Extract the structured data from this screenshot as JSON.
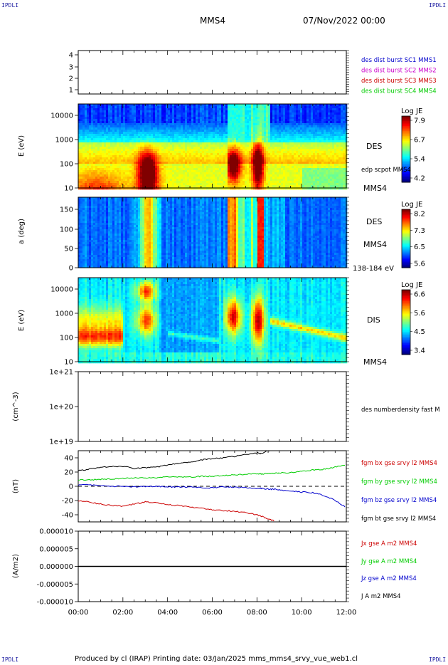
{
  "corner_labels": {
    "tl": "IPDLI",
    "tr": "IPDLI",
    "bl": "IPDLI",
    "br": "IPDLI"
  },
  "header": {
    "spacecraft": "MMS4",
    "date": "07/Nov/2022 00:00"
  },
  "footer": {
    "text": "Produced by cl (IRAP)   Printing date: 03/Jan/2025   mms_mms4_srvy_vue_web1.cl"
  },
  "colors": {
    "red": "#cc0000",
    "green": "#00cc00",
    "blue": "#0000cc",
    "black": "#000000",
    "magenta": "#cc00cc",
    "corner": "#1a1aa0"
  },
  "chart_data": [
    {
      "type": "table",
      "name": "burst-availability",
      "ytick_labels": [
        "4",
        "3",
        "2",
        "1"
      ],
      "legend": [
        {
          "text": "des dist burst SC1 MMS1",
          "color": "#0000cc"
        },
        {
          "text": "des dist burst SC2 MMS2",
          "color": "#cc00cc"
        },
        {
          "text": "des dist burst SC3 MMS3",
          "color": "#cc0000"
        },
        {
          "text": "des dist burst SC4 MMS4",
          "color": "#00cc00"
        }
      ]
    },
    {
      "type": "heatmap",
      "name": "des-energy-spectrogram",
      "ylabel": "E (eV)",
      "ytick_labels": [
        "10000",
        "1000",
        "100",
        "10"
      ],
      "yscale": "log",
      "ylim": [
        10,
        30000
      ],
      "colorbar": {
        "title": "Log JE",
        "tick_labels": [
          "7.9",
          "6.7",
          "5.4",
          "4.2"
        ],
        "range": [
          4.2,
          8.3
        ]
      },
      "side_labels": {
        "instrument": "DES",
        "overlay": "edp scpot MMS4",
        "spacecraft": "MMS4"
      }
    },
    {
      "type": "heatmap",
      "name": "des-pitch-angle",
      "ylabel": "a (deg)",
      "ytick_labels": [
        "150",
        "100",
        "50",
        "0"
      ],
      "ylim": [
        0,
        180
      ],
      "colorbar": {
        "title": "Log JE",
        "tick_labels": [
          "8.2",
          "7.3",
          "6.5",
          "5.6"
        ],
        "range": [
          5.6,
          8.5
        ]
      },
      "side_labels": {
        "instrument": "DES",
        "spacecraft": "MMS4",
        "energy_range": "138-184 eV"
      }
    },
    {
      "type": "heatmap",
      "name": "dis-energy-spectrogram",
      "ylabel": "E (eV)",
      "ytick_labels": [
        "10000",
        "1000",
        "100",
        "10"
      ],
      "yscale": "log",
      "ylim": [
        10,
        30000
      ],
      "colorbar": {
        "title": "Log JE",
        "tick_labels": [
          "6.6",
          "5.6",
          "4.5",
          "3.4"
        ],
        "range": [
          3.4,
          7.0
        ]
      },
      "side_labels": {
        "instrument": "DIS",
        "spacecraft": "MMS4"
      }
    },
    {
      "type": "line",
      "name": "electron-density",
      "ylabel": "(cm^-3)",
      "ytick_labels": [
        "1e+21",
        "1e+20",
        "1e+19"
      ],
      "yscale": "log",
      "legend": [
        {
          "text": "des numberdensity fast M",
          "color": "#000000"
        }
      ]
    },
    {
      "type": "line",
      "name": "magnetic-field",
      "ylabel": "(nT)",
      "ytick_labels": [
        "40",
        "20",
        "0",
        "-20",
        "-40"
      ],
      "ylim": [
        -50,
        50
      ],
      "x": [
        0,
        0.5,
        1,
        1.5,
        2,
        2.5,
        3,
        3.5,
        4,
        4.5,
        5,
        5.5,
        6,
        6.5,
        7,
        7.5,
        8,
        8.2,
        8.5,
        8.8,
        9,
        9.5,
        10,
        10.5,
        11,
        11.5,
        12
      ],
      "series": [
        {
          "name": "fgm bx gse srvy l2 MMS4",
          "color": "#cc0000",
          "values": [
            -20,
            -22,
            -25,
            -27,
            -28,
            -25,
            -22,
            -23,
            -26,
            -27,
            -29,
            -31,
            -33,
            -34,
            -35,
            -37,
            -40,
            -42,
            -46,
            -49,
            null,
            null,
            null,
            null,
            null,
            null,
            null
          ]
        },
        {
          "name": "fgm by gse srvy l2 MMS4",
          "color": "#00cc00",
          "values": [
            9,
            9,
            10,
            10,
            11,
            12,
            12,
            12,
            13,
            13,
            13,
            14,
            14,
            15,
            16,
            17,
            18,
            17,
            18,
            18,
            19,
            19,
            21,
            23,
            24,
            27,
            30
          ]
        },
        {
          "name": "fgm bz gse srvy l2 MMS4",
          "color": "#0000cc",
          "values": [
            2,
            2,
            1,
            0,
            0,
            -1,
            0,
            0,
            -1,
            -1,
            -1,
            -2,
            -2,
            -1,
            -1,
            -2,
            -3,
            -3,
            -4,
            -4,
            -5,
            -7,
            -8,
            -9,
            -13,
            -20,
            -30
          ]
        },
        {
          "name": "fgm bt gse srvy l2 MMS4",
          "color": "#000000",
          "values": [
            22,
            24,
            27,
            28,
            28,
            25,
            26,
            27,
            30,
            32,
            34,
            37,
            39,
            40,
            42,
            45,
            47,
            46,
            50,
            51,
            null,
            null,
            null,
            null,
            null,
            null,
            null
          ]
        }
      ]
    },
    {
      "type": "line",
      "name": "current-density",
      "ylabel": "(A/m2)",
      "ytick_labels": [
        "0.000010",
        "0.000005",
        "0.000000",
        "-0.000005",
        "-0.000010"
      ],
      "ylim": [
        -1e-05,
        1e-05
      ],
      "x": [
        0,
        12
      ],
      "series": [
        {
          "name": "Jx gse A m2 MMS4",
          "color": "#cc0000",
          "values": [
            0,
            0
          ]
        },
        {
          "name": "Jy gse A m2 MMS4",
          "color": "#00cc00",
          "values": [
            0,
            0
          ]
        },
        {
          "name": "Jz gse A m2 MMS4",
          "color": "#0000cc",
          "values": [
            0,
            0
          ]
        },
        {
          "name": "J A m2 MMS4",
          "color": "#000000",
          "values": [
            0,
            0
          ]
        }
      ],
      "xtick_labels": [
        "00:00",
        "02:00",
        "04:00",
        "06:00",
        "08:00",
        "10:00",
        "12:00"
      ]
    }
  ]
}
